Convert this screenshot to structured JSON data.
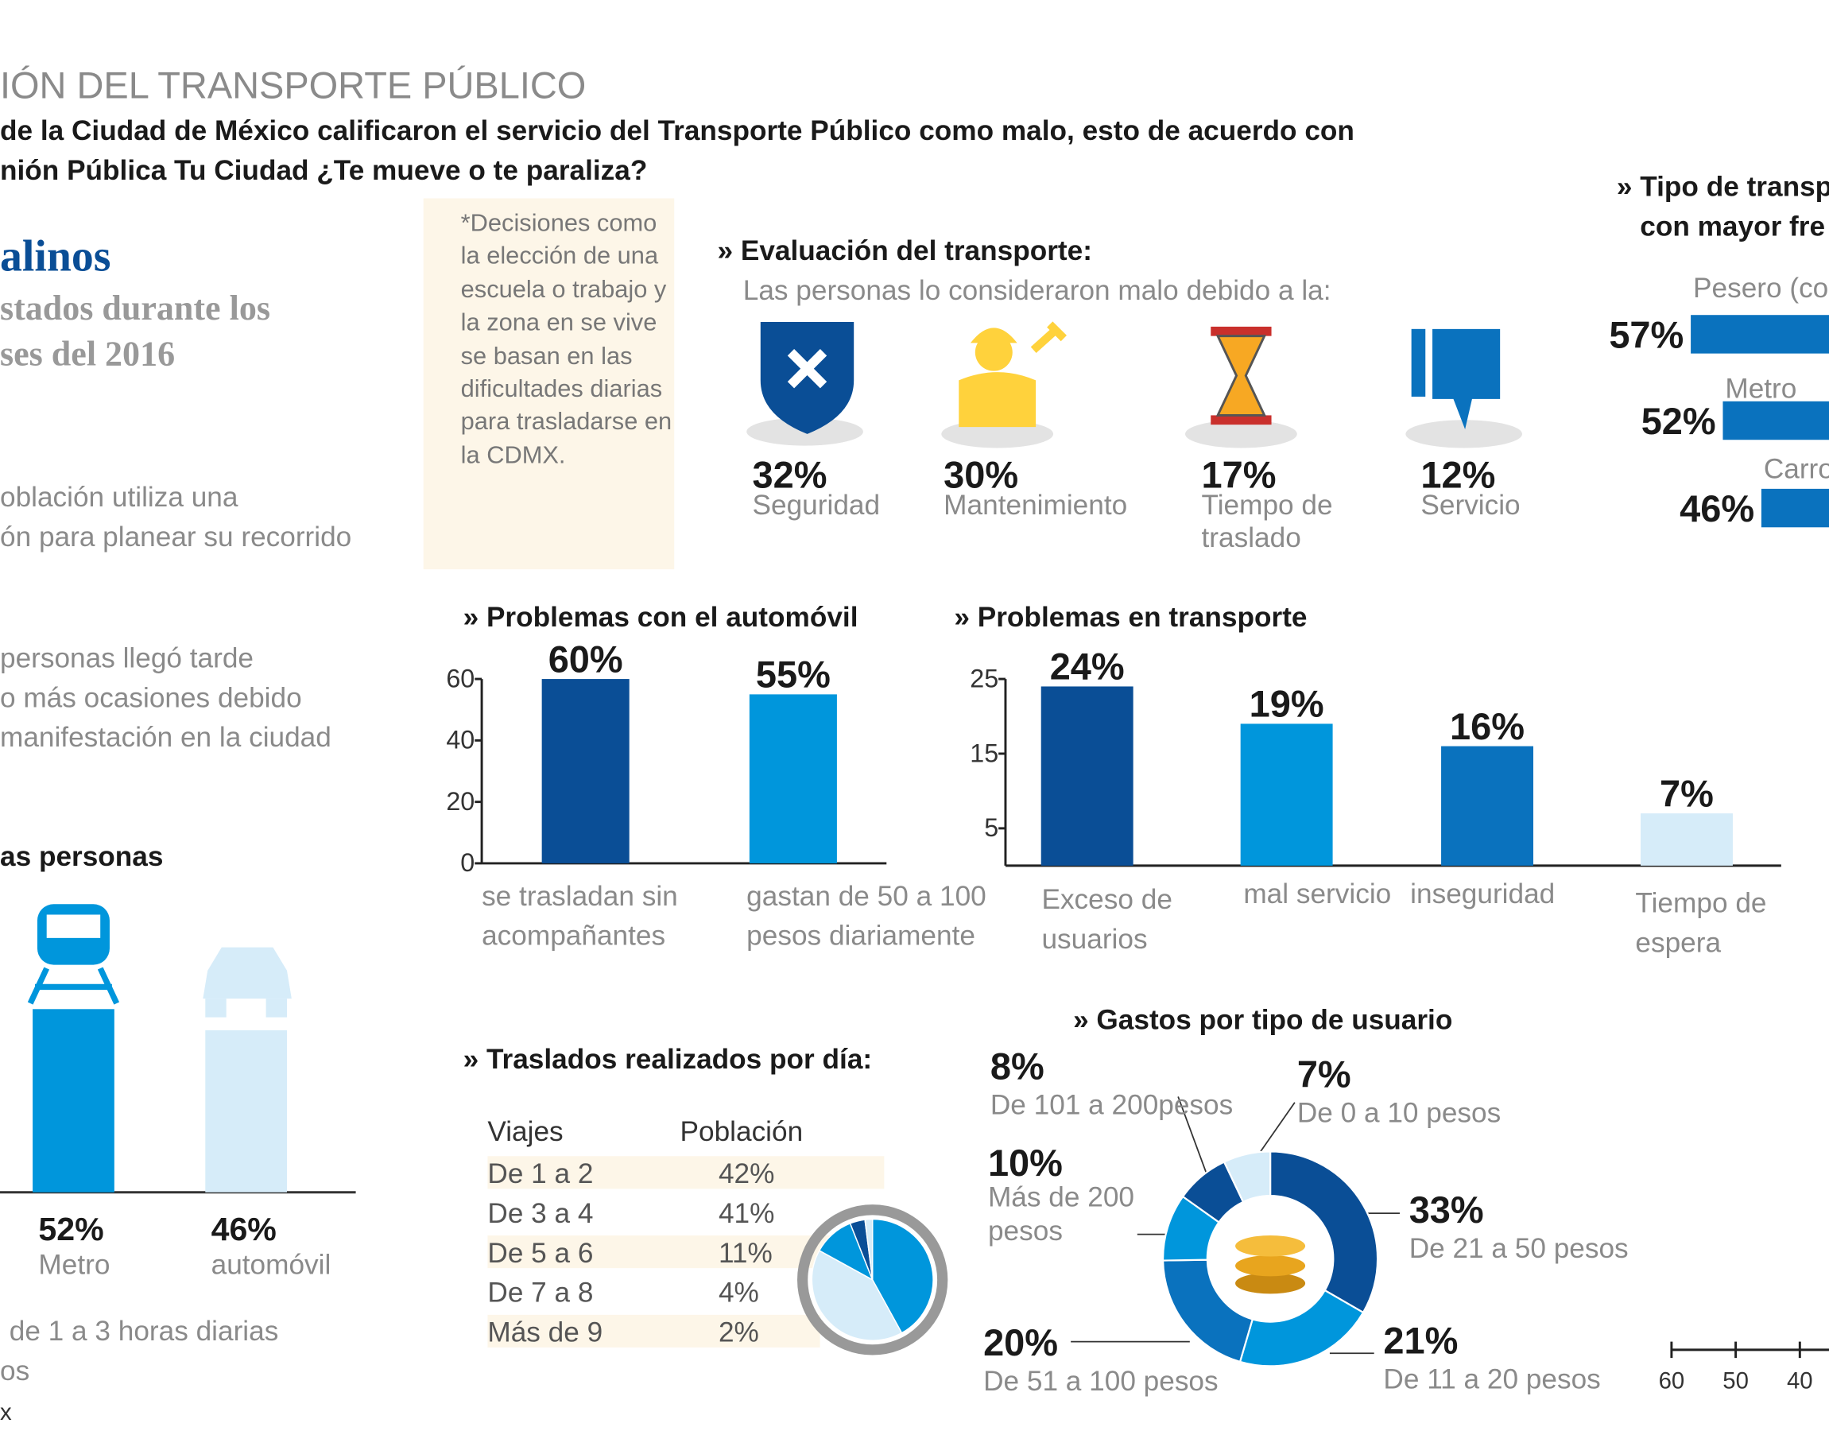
{
  "header": {
    "title": "IÓN DEL TRANSPORTE PÚBLICO",
    "subtitle": [
      "de la Ciudad de México calificaron el servicio del Transporte Público como malo, esto de acuerdo con",
      "nión Pública Tu Ciudad ¿Te mueve o te paraliza?"
    ]
  },
  "intro": {
    "heading": "alinos",
    "lines": [
      "stados durante los",
      "ses del 2016"
    ]
  },
  "facts": [
    [
      "oblación utiliza una",
      "ón para planear su recorrido"
    ],
    [
      "personas llegó tarde",
      "o más ocasiones debido",
      "manifestación en la ciudad"
    ]
  ],
  "note": "*Decisiones como la elección de una escuela o trabajo y la zona en se vive se basan en las dificultades diarias para trasladarse en la CDMX.",
  "footer": [
    "de 1 a 3 horas diarias",
    "os",
    "x"
  ],
  "chart_data": [
    {
      "type": "pictogram",
      "title": "» Evaluación del transporte:",
      "subtitle": "Las personas lo consideraron malo debido a la:",
      "categories": [
        "Seguridad",
        "Mantenimiento",
        "Tiempo de traslado",
        "Servicio"
      ],
      "values": [
        32,
        30,
        17,
        12
      ],
      "value_labels": [
        "32%",
        "30%",
        "17%",
        "12%"
      ]
    },
    {
      "type": "bar",
      "title": "as personas",
      "categories": [
        "Metro",
        "automóvil"
      ],
      "values": [
        52,
        46
      ],
      "value_labels": [
        "52%",
        "46%"
      ],
      "colors": [
        "#0096dc",
        "#d6ecf9"
      ]
    },
    {
      "type": "bar",
      "title": "» Problemas con el automóvil",
      "categories": [
        "se trasladan sin acompañantes",
        "gastan de 50 a 100 pesos diariamente"
      ],
      "values": [
        60,
        55
      ],
      "value_labels": [
        "60%",
        "55%"
      ],
      "colors": [
        "#0a4e96",
        "#0096dc"
      ],
      "ylim": [
        0,
        60
      ],
      "yticks": [
        0,
        20,
        40,
        60
      ]
    },
    {
      "type": "bar",
      "title": "» Problemas en transporte",
      "categories": [
        "Exceso de usuarios",
        "mal servicio",
        "inseguridad",
        "Tiempo de espera"
      ],
      "values": [
        24,
        19,
        16,
        7
      ],
      "value_labels": [
        "24%",
        "19%",
        "16%",
        "7%"
      ],
      "colors": [
        "#0a4e96",
        "#0096dc",
        "#0a72be",
        "#d6ecf9"
      ],
      "ylim": [
        0,
        25
      ],
      "yticks": [
        5,
        15,
        25
      ]
    },
    {
      "type": "hbar",
      "title": [
        "» Tipo de transp",
        "con mayor fre"
      ],
      "categories": [
        "Pesero (co",
        "Metro",
        "Carro"
      ],
      "values": [
        57,
        52,
        46
      ],
      "value_labels": [
        "57%",
        "52%",
        "46%"
      ],
      "color": "#0a72be",
      "xlim": [
        60,
        0
      ],
      "xticks": [
        60,
        50,
        40
      ]
    },
    {
      "type": "pie",
      "title": "» Traslados realizados por día:",
      "columns": [
        "Viajes",
        "Población"
      ],
      "categories": [
        "De 1 a 2",
        "De 3 a 4",
        "De 5 a 6",
        "De 7 a 8",
        "Más de 9"
      ],
      "values": [
        42,
        41,
        11,
        4,
        2
      ],
      "value_labels": [
        "42%",
        "41%",
        "11%",
        "4%",
        "2%"
      ],
      "colors": [
        "#0096dc",
        "#d6ecf9",
        "#0096dc",
        "#0a4e96",
        "#d6ecf9"
      ]
    },
    {
      "type": "donut",
      "title": "» Gastos por tipo de usuario",
      "categories": [
        "De 21 a 50 pesos",
        "De 11 a 20 pesos",
        "De 51 a 100 pesos",
        "Más de 200 pesos",
        "De 101 a 200pesos",
        "De 0 a 10 pesos"
      ],
      "values": [
        33,
        21,
        20,
        10,
        8,
        7
      ],
      "value_labels": [
        "33%",
        "21%",
        "20%",
        "10%",
        "8%",
        "7%"
      ],
      "colors": [
        "#0a4e96",
        "#0096dc",
        "#0a72be",
        "#0096dc",
        "#0a4e96",
        "#d6ecf9"
      ]
    }
  ]
}
